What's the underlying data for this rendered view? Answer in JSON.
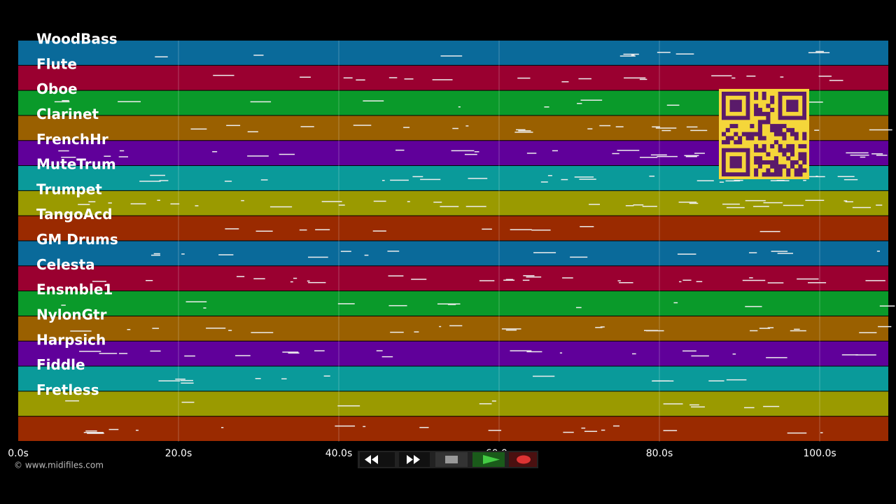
{
  "tracks": [
    "WoodBass",
    "Flute",
    "Oboe",
    "Clarinet",
    "FrenchHr",
    "MuteTrum",
    "Trumpet",
    "TangoAcd",
    "GM Drums",
    "Celesta",
    "Ensmble1",
    "NylonGtr",
    "Harpsich",
    "Fiddle",
    "Fretless"
  ],
  "axis": {
    "ticks": [
      "0.0s",
      "20.0s",
      "40.0s",
      "60.0s",
      "80.0s",
      "100.0s"
    ]
  },
  "copyright": "© www.midifiles.com"
}
